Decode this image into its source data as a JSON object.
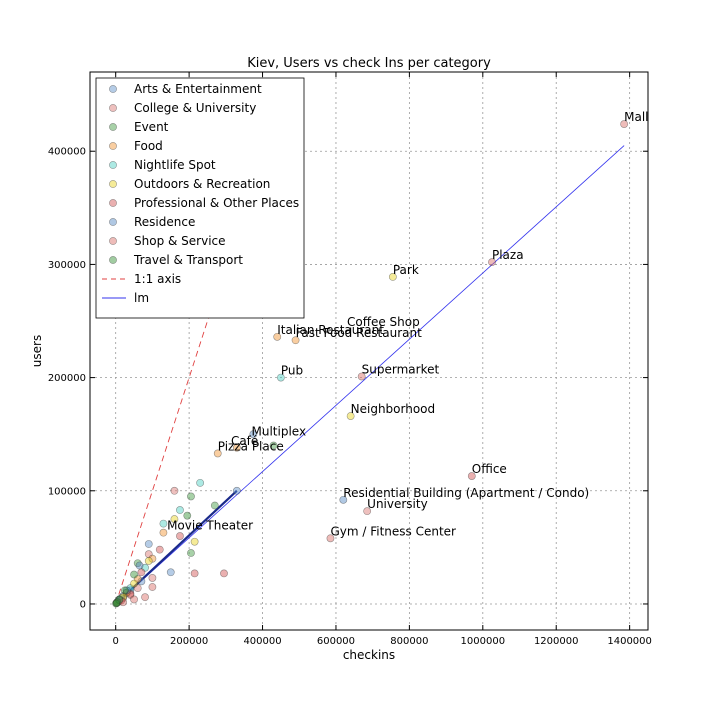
{
  "chart_data": {
    "type": "scatter",
    "title": "Kiev, Users vs check Ins per category",
    "xlabel": "checkins",
    "ylabel": "users",
    "xlim": [
      -70000,
      1450000
    ],
    "ylim": [
      -23000,
      470000
    ],
    "xticks": [
      0,
      200000,
      400000,
      600000,
      800000,
      1000000,
      1200000,
      1400000
    ],
    "yticks": [
      0,
      100000,
      200000,
      300000,
      400000
    ],
    "grid": true,
    "legend_position": "top-left",
    "series": [
      {
        "name": "Arts & Entertainment",
        "color": "#5b8fc7",
        "points": [
          [
            375000,
            150000
          ],
          [
            330000,
            100000
          ],
          [
            90000,
            53000
          ],
          [
            150000,
            28000
          ],
          [
            70000,
            20000
          ],
          [
            40000,
            12000
          ],
          [
            20000,
            7000
          ],
          [
            10000,
            4000
          ],
          [
            5000,
            2000
          ],
          [
            2000,
            800
          ]
        ]
      },
      {
        "name": "College & University",
        "color": "#d9736f",
        "points": [
          [
            685000,
            82000
          ],
          [
            160000,
            100000
          ],
          [
            90000,
            44000
          ],
          [
            100000,
            23000
          ],
          [
            60000,
            14000
          ],
          [
            40000,
            8000
          ],
          [
            20000,
            5000
          ],
          [
            8000,
            2000
          ],
          [
            3000,
            1000
          ]
        ]
      },
      {
        "name": "Event",
        "color": "#3d9a3d",
        "points": [
          [
            430000,
            140000
          ],
          [
            270000,
            87000
          ],
          [
            205000,
            95000
          ],
          [
            205000,
            45000
          ],
          [
            60000,
            36000
          ],
          [
            30000,
            10000
          ],
          [
            10000,
            3000
          ],
          [
            3000,
            900
          ]
        ]
      },
      {
        "name": "Food",
        "color": "#f2922f",
        "points": [
          [
            440000,
            236000
          ],
          [
            490000,
            233000
          ],
          [
            278000,
            133000
          ],
          [
            330000,
            138000
          ],
          [
            130000,
            63000
          ],
          [
            100000,
            40000
          ],
          [
            60000,
            22000
          ],
          [
            30000,
            10000
          ],
          [
            10000,
            3500
          ]
        ]
      },
      {
        "name": "Nightlife Spot",
        "color": "#47cfc0",
        "points": [
          [
            450000,
            200000
          ],
          [
            230000,
            107000
          ],
          [
            175000,
            83000
          ],
          [
            130000,
            71000
          ],
          [
            80000,
            32000
          ],
          [
            40000,
            14000
          ],
          [
            15000,
            5000
          ]
        ]
      },
      {
        "name": "Outdoors & Recreation",
        "color": "#e8d31b",
        "points": [
          [
            755000,
            289000
          ],
          [
            640000,
            166000
          ],
          [
            215000,
            55000
          ],
          [
            160000,
            75000
          ],
          [
            90000,
            38000
          ],
          [
            50000,
            18000
          ],
          [
            20000,
            6000
          ]
        ]
      },
      {
        "name": "Professional & Other Places",
        "color": "#d05050",
        "points": [
          [
            970000,
            113000
          ],
          [
            295000,
            27000
          ],
          [
            215000,
            27000
          ],
          [
            175000,
            60000
          ],
          [
            120000,
            48000
          ],
          [
            70000,
            28000
          ],
          [
            40000,
            9000
          ],
          [
            15000,
            3000
          ]
        ]
      },
      {
        "name": "Residence",
        "color": "#4f86c2",
        "points": [
          [
            620000,
            92000
          ],
          [
            65000,
            34000
          ],
          [
            30000,
            12000
          ],
          [
            10000,
            3500
          ]
        ]
      },
      {
        "name": "Shop & Service",
        "color": "#d96b63",
        "points": [
          [
            1385000,
            424000
          ],
          [
            1025000,
            302000
          ],
          [
            670000,
            201000
          ],
          [
            585000,
            58000
          ],
          [
            100000,
            15000
          ],
          [
            80000,
            6000
          ],
          [
            50000,
            4000
          ],
          [
            20000,
            1500
          ]
        ]
      },
      {
        "name": "Travel & Transport",
        "color": "#2f8f2f",
        "points": [
          [
            195000,
            78000
          ],
          [
            50000,
            26000
          ],
          [
            25000,
            12000
          ],
          [
            10000,
            4000
          ],
          [
            4000,
            1500
          ],
          [
            1000,
            400
          ]
        ]
      }
    ],
    "reference_lines": [
      {
        "name": "1:1 axis",
        "style": "dashed",
        "color": "#e04040",
        "x": [
          0,
          263000
        ],
        "y": [
          0,
          263000
        ]
      },
      {
        "name": "lm",
        "style": "solid",
        "color": "#3333ee",
        "x": [
          0,
          1385000
        ],
        "y": [
          0,
          405000
        ]
      }
    ],
    "annotations": [
      {
        "text": "Mall",
        "x": 1385000,
        "y": 424000
      },
      {
        "text": "Plaza",
        "x": 1025000,
        "y": 302000
      },
      {
        "text": "Park",
        "x": 755000,
        "y": 289000
      },
      {
        "text": "Coffee Shop",
        "x": 630000,
        "y": 243000
      },
      {
        "text": "Italian Restaurant",
        "x": 440000,
        "y": 236000
      },
      {
        "text": "Fast Food Restaurant",
        "x": 490000,
        "y": 233000
      },
      {
        "text": "Pub",
        "x": 450000,
        "y": 200000
      },
      {
        "text": "Supermarket",
        "x": 670000,
        "y": 201000
      },
      {
        "text": "Neighborhood",
        "x": 640000,
        "y": 166000
      },
      {
        "text": "Multiplex",
        "x": 370000,
        "y": 146000
      },
      {
        "text": "Café",
        "x": 314000,
        "y": 138000
      },
      {
        "text": "Pizza Place",
        "x": 278000,
        "y": 133000
      },
      {
        "text": "Office",
        "x": 970000,
        "y": 113000
      },
      {
        "text": "Residential Building (Apartment / Condo)",
        "x": 620000,
        "y": 92000
      },
      {
        "text": "University",
        "x": 685000,
        "y": 82000
      },
      {
        "text": "Movie Theater",
        "x": 140000,
        "y": 63000
      },
      {
        "text": "Gym / Fitness Center",
        "x": 585000,
        "y": 58000
      }
    ]
  }
}
